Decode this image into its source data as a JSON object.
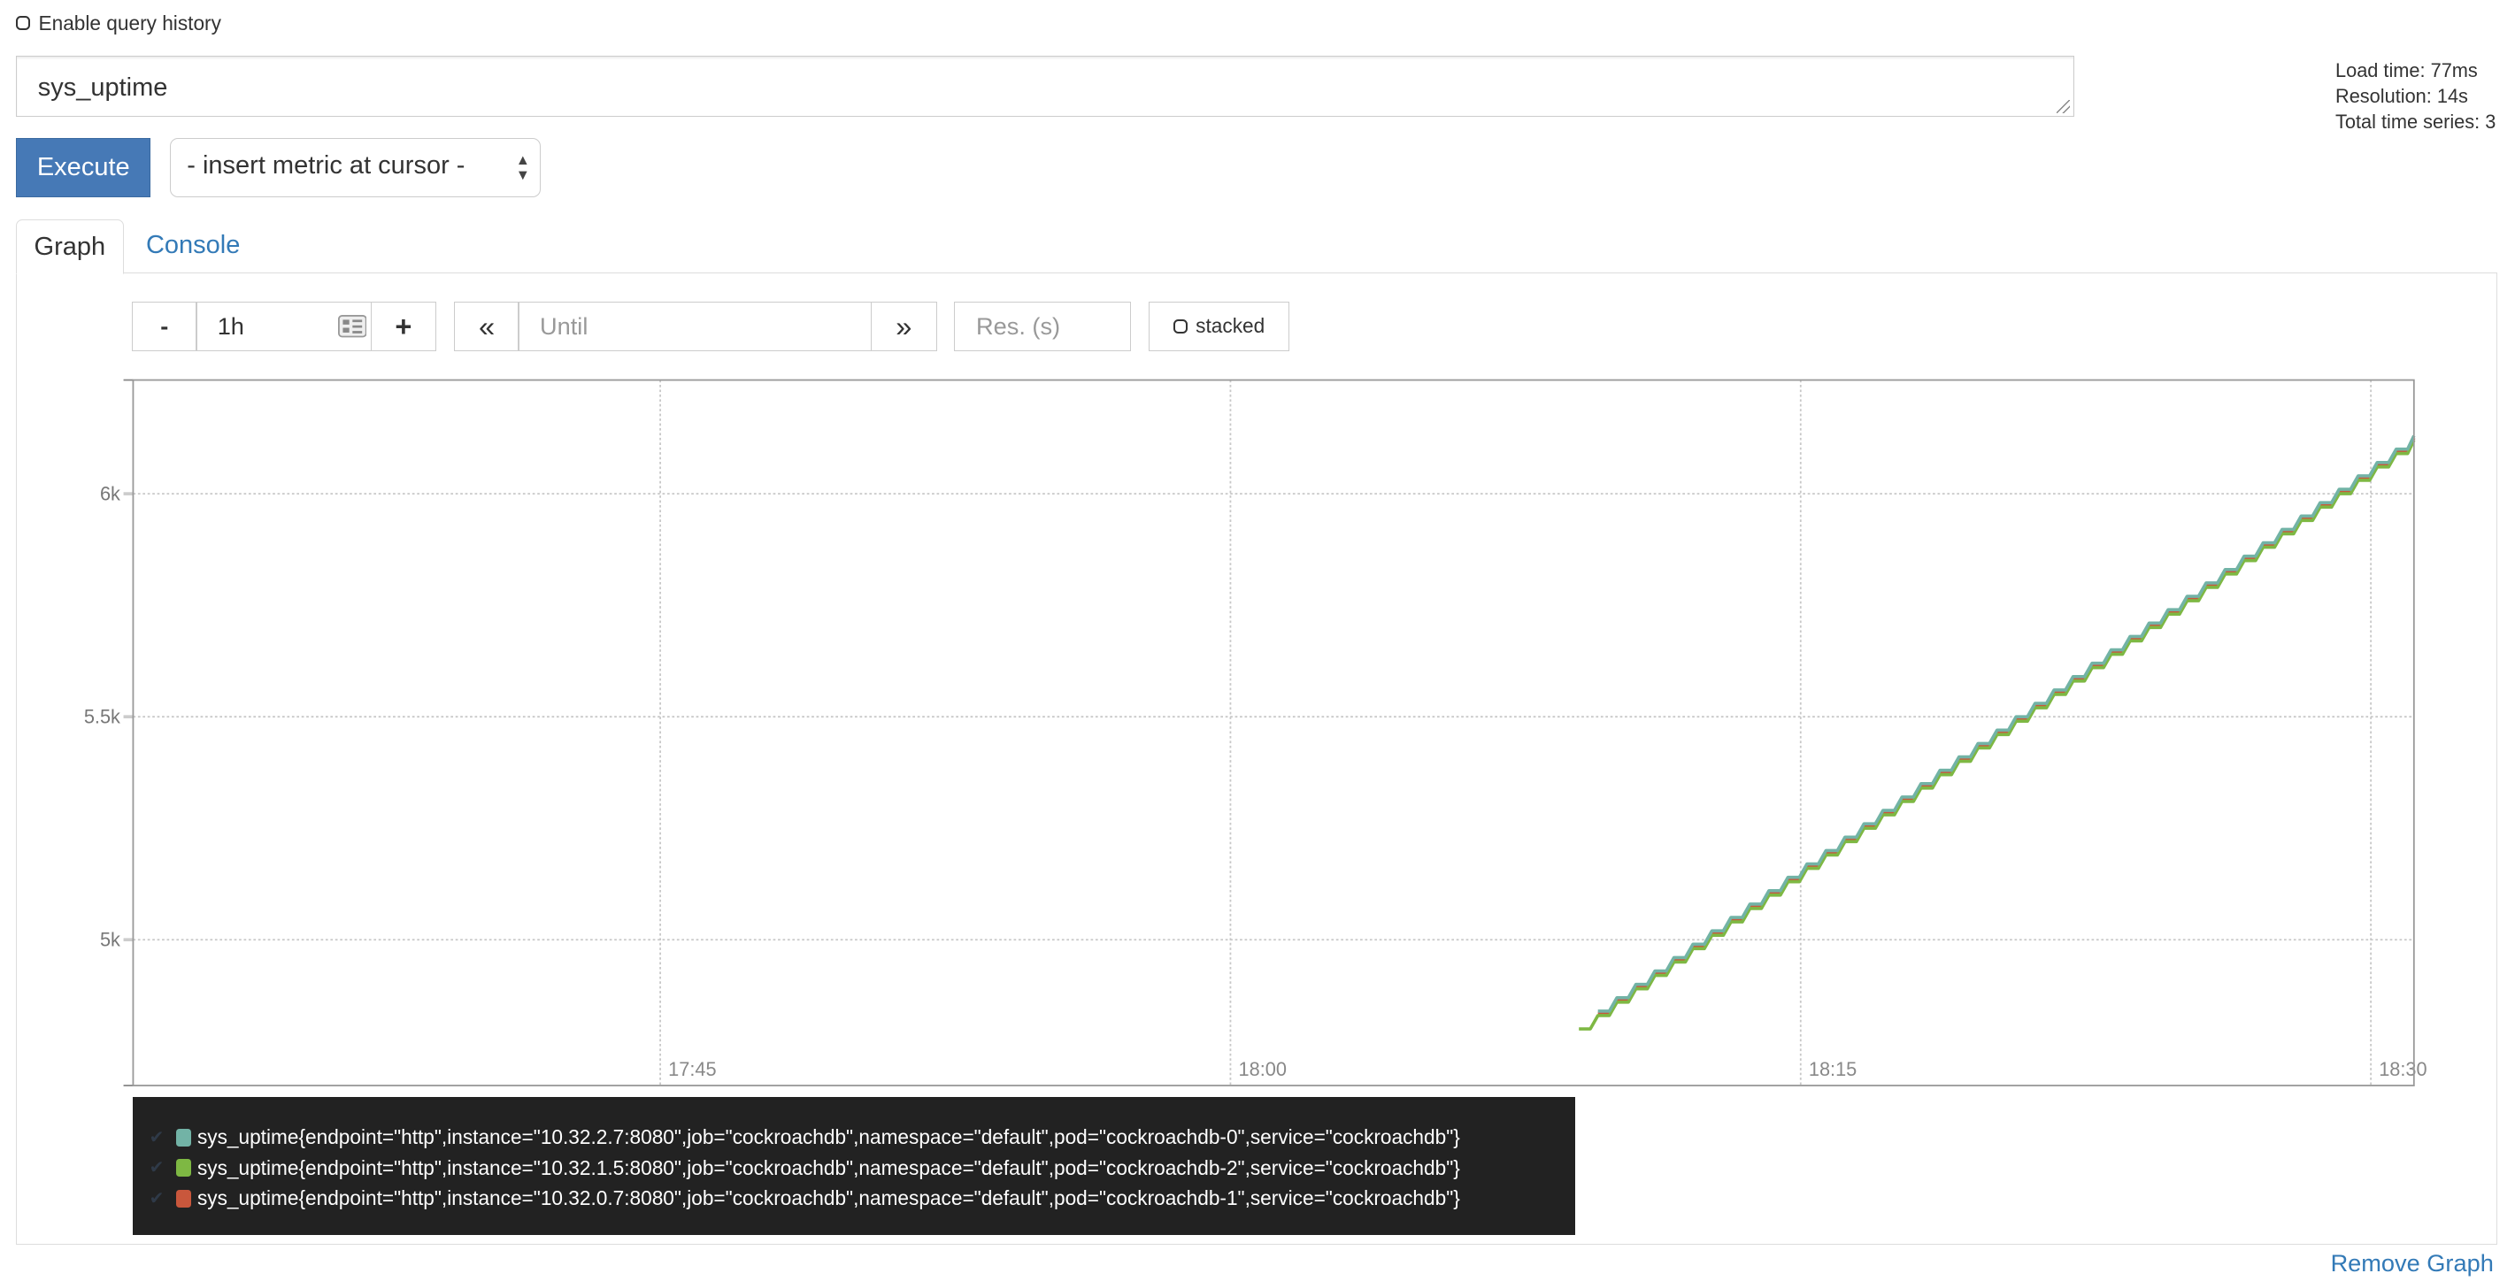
{
  "query_history": {
    "label": "Enable query history",
    "checked": false
  },
  "expression": {
    "value": "sys_uptime"
  },
  "stats": {
    "load_time": "Load time: 77ms",
    "resolution": "Resolution: 14s",
    "total_series": "Total time series: 3"
  },
  "execute_label": "Execute",
  "metric_select": {
    "selected": "- insert metric at cursor -"
  },
  "tabs": [
    {
      "label": "Graph",
      "active": true
    },
    {
      "label": "Console",
      "active": false
    }
  ],
  "controls": {
    "range_minus": "-",
    "range_value": "1h",
    "range_plus": "+",
    "back": "«",
    "until_placeholder": "Until",
    "forward": "»",
    "res_placeholder": "Res. (s)",
    "stacked_label": "stacked"
  },
  "colors": {
    "accent": "#4679b6",
    "link": "#337ab7",
    "legend_bg": "#222222"
  },
  "chart_data": {
    "type": "line",
    "xlim": [
      "17:31:08",
      "18:31:08"
    ],
    "ylim": [
      4673,
      6255
    ],
    "grid": true,
    "x_ticks": [
      "17:45",
      "18:00",
      "18:15",
      "18:30"
    ],
    "y_ticks": [
      {
        "value": 5000,
        "label": "5k"
      },
      {
        "value": 5500,
        "label": "5.5k"
      },
      {
        "value": 6000,
        "label": "6k"
      }
    ],
    "x": [
      "18:09:10",
      "18:09:40",
      "18:10:10",
      "18:10:40",
      "18:11:10",
      "18:11:40",
      "18:12:10",
      "18:12:40",
      "18:13:10",
      "18:13:40",
      "18:14:10",
      "18:14:40",
      "18:15:10",
      "18:15:40",
      "18:16:10",
      "18:16:40",
      "18:17:10",
      "18:17:40",
      "18:18:10",
      "18:18:40",
      "18:19:10",
      "18:19:40",
      "18:20:10",
      "18:20:40",
      "18:21:10",
      "18:21:40",
      "18:22:10",
      "18:22:40",
      "18:23:10",
      "18:23:40",
      "18:24:10",
      "18:24:40",
      "18:25:10",
      "18:25:40",
      "18:26:10",
      "18:26:40",
      "18:27:10",
      "18:27:40",
      "18:28:10",
      "18:28:40",
      "18:29:10",
      "18:29:40",
      "18:30:10",
      "18:30:40",
      "18:31:10"
    ],
    "legend_placement": "bottom",
    "series": [
      {
        "name": "sys_uptime{endpoint=\"http\",instance=\"10.32.0.7:8080\",job=\"cockroachdb\",namespace=\"default\",pod=\"cockroachdb-1\",service=\"cockroachdb\"}",
        "color": "#c9573c",
        "values": [
          null,
          4835,
          4865,
          4895,
          4925,
          4955,
          4985,
          5015,
          5045,
          5075,
          5105,
          5135,
          5165,
          5195,
          5225,
          5255,
          5285,
          5315,
          5345,
          5375,
          5405,
          5435,
          5465,
          5495,
          5525,
          5555,
          5585,
          5615,
          5645,
          5675,
          5705,
          5735,
          5765,
          5795,
          5825,
          5855,
          5885,
          5915,
          5945,
          5975,
          6005,
          6035,
          6065,
          6095,
          6125
        ]
      },
      {
        "name": "sys_uptime{endpoint=\"http\",instance=\"10.32.1.5:8080\",job=\"cockroachdb\",namespace=\"default\",pod=\"cockroachdb-2\",service=\"cockroachdb\"}",
        "color": "#7eb843",
        "values": [
          4800,
          4830,
          4860,
          4890,
          4920,
          4950,
          4980,
          5010,
          5040,
          5070,
          5100,
          5130,
          5160,
          5190,
          5220,
          5250,
          5280,
          5310,
          5340,
          5370,
          5400,
          5430,
          5460,
          5490,
          5520,
          5550,
          5580,
          5610,
          5640,
          5670,
          5700,
          5730,
          5760,
          5790,
          5820,
          5850,
          5880,
          5910,
          5940,
          5970,
          6000,
          6030,
          6060,
          6090,
          6120
        ]
      },
      {
        "name": "sys_uptime{endpoint=\"http\",instance=\"10.32.2.7:8080\",job=\"cockroachdb\",namespace=\"default\",pod=\"cockroachdb-0\",service=\"cockroachdb\"}",
        "color": "#72b3a6",
        "values": [
          null,
          4840,
          4870,
          4900,
          4930,
          4960,
          4990,
          5020,
          5050,
          5080,
          5110,
          5140,
          5170,
          5200,
          5230,
          5260,
          5290,
          5320,
          5350,
          5380,
          5410,
          5440,
          5470,
          5500,
          5530,
          5560,
          5590,
          5620,
          5650,
          5680,
          5710,
          5740,
          5770,
          5800,
          5830,
          5860,
          5890,
          5920,
          5950,
          5980,
          6010,
          6040,
          6070,
          6100,
          6130
        ]
      }
    ]
  },
  "legend": [
    {
      "label": "sys_uptime{endpoint=\"http\",instance=\"10.32.2.7:8080\",job=\"cockroachdb\",namespace=\"default\",pod=\"cockroachdb-0\",service=\"cockroachdb\"}",
      "color": "#72b3a6",
      "check": "✔"
    },
    {
      "label": "sys_uptime{endpoint=\"http\",instance=\"10.32.1.5:8080\",job=\"cockroachdb\",namespace=\"default\",pod=\"cockroachdb-2\",service=\"cockroachdb\"}",
      "color": "#7eb843",
      "check": "✔"
    },
    {
      "label": "sys_uptime{endpoint=\"http\",instance=\"10.32.0.7:8080\",job=\"cockroachdb\",namespace=\"default\",pod=\"cockroachdb-1\",service=\"cockroachdb\"}",
      "color": "#c9573c",
      "check": "✔"
    }
  ],
  "remove_graph": "Remove Graph"
}
